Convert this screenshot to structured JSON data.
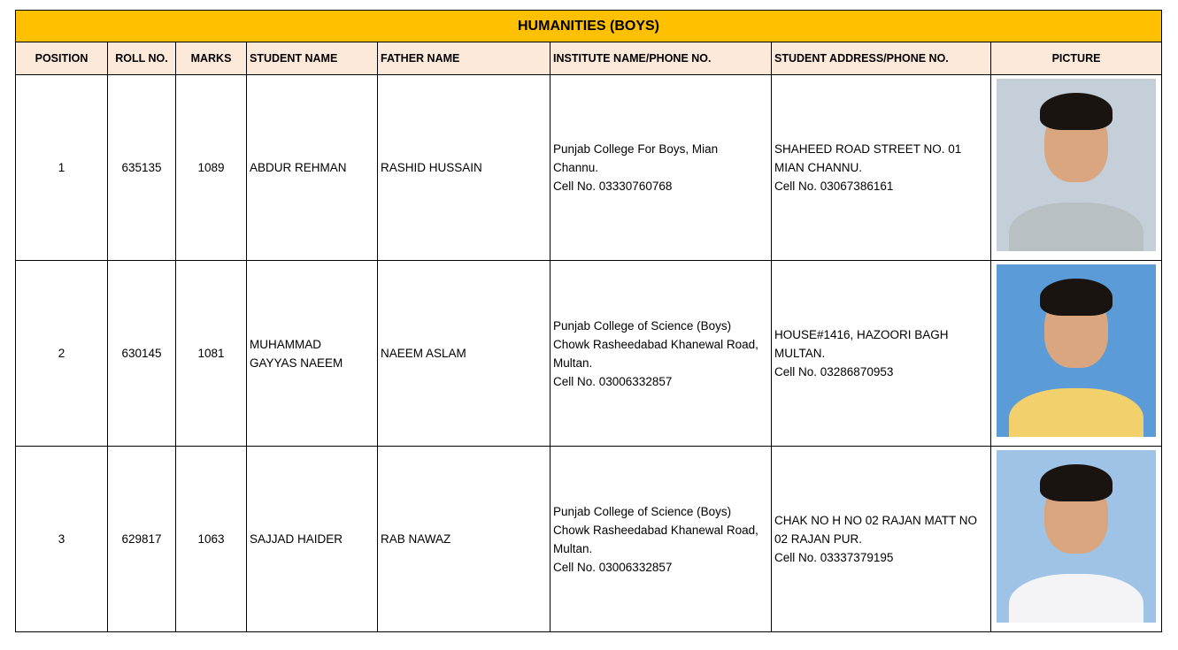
{
  "title": "HUMANITIES (BOYS)",
  "columns": [
    "POSITION",
    "ROLL NO.",
    "MARKS",
    "STUDENT NAME",
    "FATHER NAME",
    "INSTITUTE NAME/PHONE NO.",
    "STUDENT ADDRESS/PHONE NO.",
    "PICTURE"
  ],
  "colors": {
    "title_bg": "#FFC000",
    "header_bg": "#FDE9D9"
  },
  "rows": [
    {
      "position": "1",
      "roll_no": "635135",
      "marks": "1089",
      "student_name": [
        "ABDUR REHMAN"
      ],
      "father_name": "RASHID HUSSAIN",
      "institute": [
        "Punjab College For Boys, Mian",
        "Channu.",
        "Cell No. 03330760768"
      ],
      "address": [
        "SHAHEED ROAD STREET NO. 01",
        "MIAN CHANNU.",
        "Cell No. 03067386161"
      ],
      "picture": {
        "bg": "#c4cfd9",
        "shirt": "#b9c0c4"
      }
    },
    {
      "position": "2",
      "roll_no": "630145",
      "marks": "1081",
      "student_name": [
        "MUHAMMAD",
        "GAYYAS NAEEM"
      ],
      "father_name": "NAEEM ASLAM",
      "institute": [
        "Punjab College of Science (Boys)",
        "Chowk Rasheedabad Khanewal Road,",
        "Multan.",
        "Cell No.  03006332857"
      ],
      "address": [
        "HOUSE#1416, HAZOORI BAGH",
        "MULTAN.",
        "Cell No. 03286870953"
      ],
      "picture": {
        "bg": "#5b9bd8",
        "shirt": "#f2d06b"
      }
    },
    {
      "position": "3",
      "roll_no": "629817",
      "marks": "1063",
      "student_name": [
        "SAJJAD HAIDER"
      ],
      "father_name": "RAB NAWAZ",
      "institute": [
        "Punjab College of Science (Boys)",
        "Chowk Rasheedabad Khanewal Road,",
        "Multan.",
        "Cell No. 03006332857"
      ],
      "address": [
        "CHAK NO H NO 02 RAJAN MATT NO",
        "02 RAJAN PUR.",
        "Cell No. 03337379195"
      ],
      "picture": {
        "bg": "#9ec3e6",
        "shirt": "#f4f4f6"
      }
    }
  ]
}
